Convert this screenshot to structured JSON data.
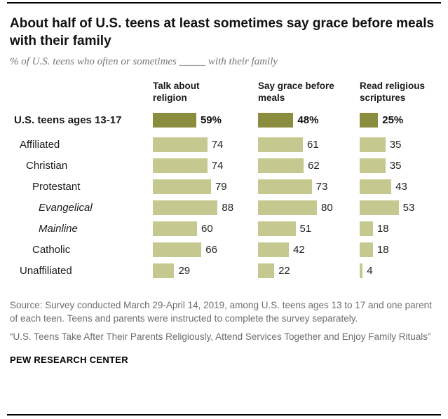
{
  "title": "About half of U.S. teens at least sometimes say grace before meals with their family",
  "subtitle": "% of U.S. teens who often or sometimes _____ with their family",
  "chart_data": {
    "type": "bar",
    "orientation": "horizontal",
    "columns": [
      "Talk about religion",
      "Say grace before meals",
      "Read religious scriptures"
    ],
    "value_range": [
      0,
      100
    ],
    "colors": {
      "highlight_bar": "#8a8c3e",
      "normal_bar": "#c6c98f"
    },
    "rows": [
      {
        "label": "U.S. teens ages 13-17",
        "values": [
          59,
          48,
          25
        ],
        "display": [
          "59%",
          "48%",
          "25%"
        ],
        "emphasis": true,
        "italic": false,
        "indent": 0
      },
      {
        "label": "Affiliated",
        "values": [
          74,
          61,
          35
        ],
        "display": [
          "74",
          "61",
          "35"
        ],
        "emphasis": false,
        "italic": false,
        "indent": 0
      },
      {
        "label": "Christian",
        "values": [
          74,
          62,
          35
        ],
        "display": [
          "74",
          "62",
          "35"
        ],
        "emphasis": false,
        "italic": false,
        "indent": 1
      },
      {
        "label": "Protestant",
        "values": [
          79,
          73,
          43
        ],
        "display": [
          "79",
          "73",
          "43"
        ],
        "emphasis": false,
        "italic": false,
        "indent": 2
      },
      {
        "label": "Evangelical",
        "values": [
          88,
          80,
          53
        ],
        "display": [
          "88",
          "80",
          "53"
        ],
        "emphasis": false,
        "italic": true,
        "indent": 3
      },
      {
        "label": "Mainline",
        "values": [
          60,
          51,
          18
        ],
        "display": [
          "60",
          "51",
          "18"
        ],
        "emphasis": false,
        "italic": true,
        "indent": 3
      },
      {
        "label": "Catholic",
        "values": [
          66,
          42,
          18
        ],
        "display": [
          "66",
          "42",
          "18"
        ],
        "emphasis": false,
        "italic": false,
        "indent": 2
      },
      {
        "label": "Unaffiliated",
        "values": [
          29,
          22,
          4
        ],
        "display": [
          "29",
          "22",
          "4"
        ],
        "emphasis": false,
        "italic": false,
        "indent": 0
      }
    ]
  },
  "footer": {
    "source": "Source: Survey conducted March 29-April 14, 2019, among U.S. teens ages 13 to 17 and one parent of each teen. Teens and parents were instructed to complete the survey separately.",
    "quote": "“U.S. Teens Take After Their Parents Religiously, Attend Services Together and Enjoy Family Rituals”",
    "brand": "PEW RESEARCH CENTER"
  }
}
